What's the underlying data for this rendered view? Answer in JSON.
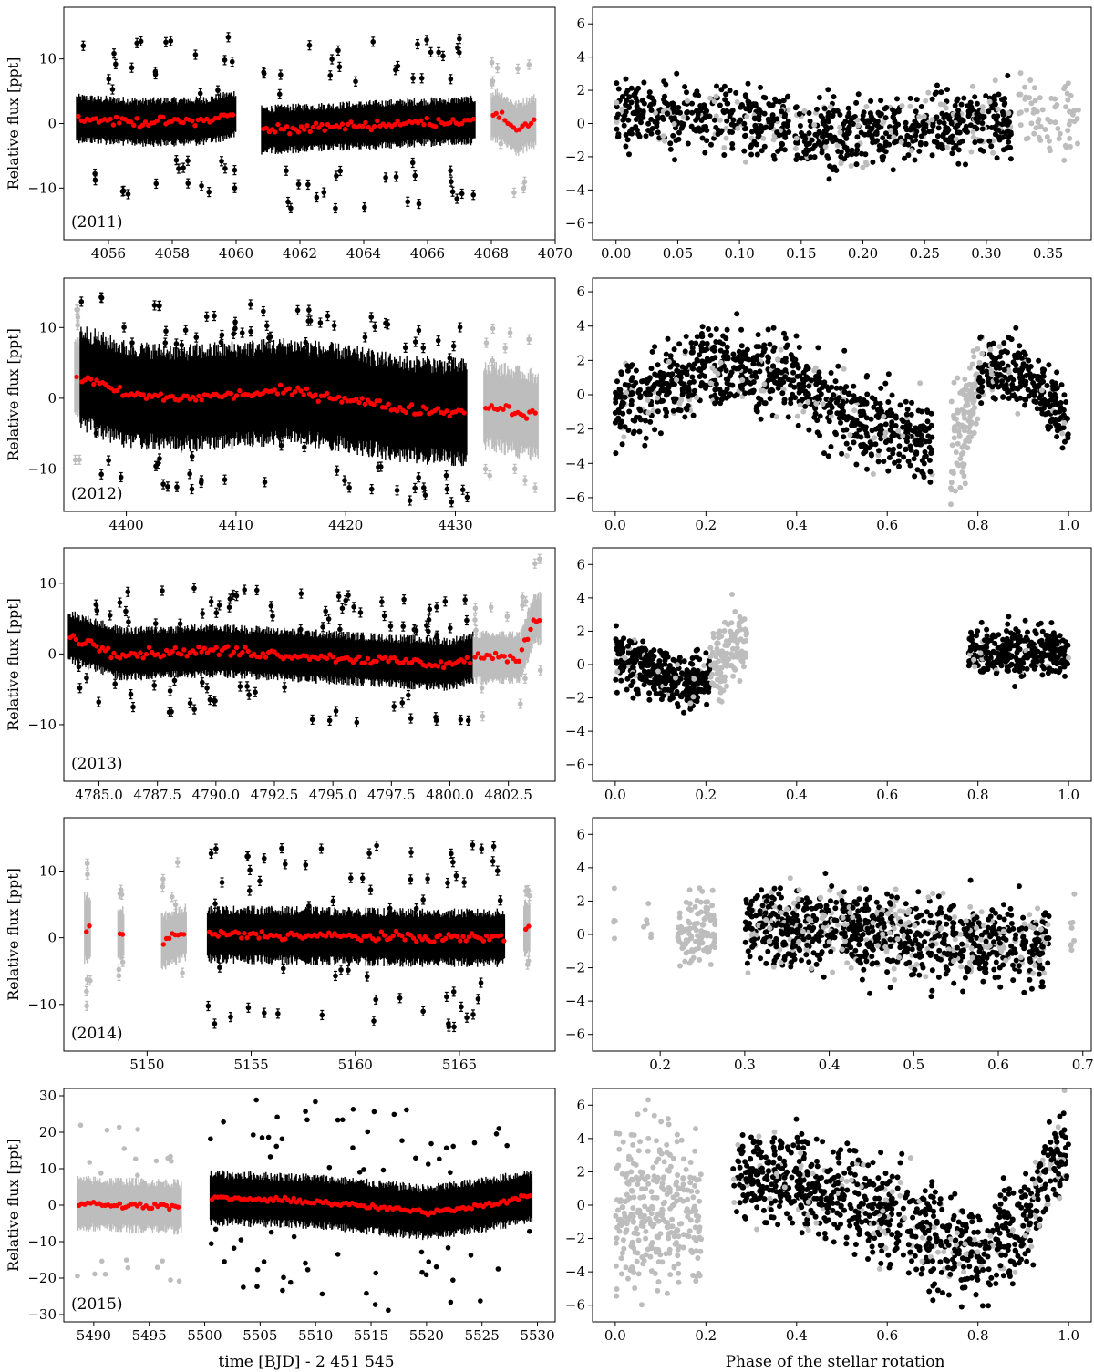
{
  "figure": {
    "xlabel_left": "time [BJD] - 2 451 545",
    "xlabel_right": "Phase of the stellar rotation",
    "ylabel": "Relative flux [ppt]"
  },
  "colors": {
    "primary": "#000000",
    "secondary": "#bdbdbd",
    "binned": "#ff0000",
    "frame": "#000000"
  },
  "chart_data": [
    {
      "type": "scatter",
      "panel": "2011-time",
      "label": "(2011)",
      "xlim": [
        4054.6,
        4070.0
      ],
      "ylim": [
        -18,
        18
      ],
      "xticks": [
        4056,
        4058,
        4060,
        4062,
        4064,
        4066,
        4068,
        4070
      ],
      "xticklabels": [
        "4056",
        "4058",
        "4060",
        "4062",
        "4064",
        "4066",
        "4068",
        "4070"
      ],
      "yticks": [
        -10,
        0,
        10
      ],
      "yticklabels": [
        "−10",
        "0",
        "10"
      ],
      "segments": [
        {
          "x": [
            4055.0,
            4060.0
          ],
          "amp": 3.5,
          "outlier": 13,
          "color": "black",
          "errorbars": true
        },
        {
          "x": [
            4060.8,
            4067.5
          ],
          "amp": 3.5,
          "outlier": 13,
          "color": "black",
          "errorbars": true
        },
        {
          "x": [
            4068.0,
            4069.4
          ],
          "amp": 4.0,
          "outlier": 12,
          "color": "gray",
          "errorbars": true
        }
      ],
      "binned_trend": [
        {
          "x": 4055.0,
          "y": 0.8
        },
        {
          "x": 4057.0,
          "y": 0.2
        },
        {
          "x": 4059.0,
          "y": 0.4
        },
        {
          "x": 4060.0,
          "y": 1.5
        },
        {
          "x": 4060.8,
          "y": -1.0
        },
        {
          "x": 4063.0,
          "y": -0.5
        },
        {
          "x": 4066.0,
          "y": 0.2
        },
        {
          "x": 4067.4,
          "y": 0.5
        },
        {
          "x": 4068.2,
          "y": 1.2
        },
        {
          "x": 4068.8,
          "y": -0.8
        },
        {
          "x": 4069.3,
          "y": 0.3
        }
      ]
    },
    {
      "type": "scatter",
      "panel": "2011-phase",
      "xlim": [
        -0.019,
        0.385
      ],
      "ylim": [
        -7,
        7
      ],
      "xticks": [
        0.0,
        0.05,
        0.1,
        0.15,
        0.2,
        0.25,
        0.3,
        0.35
      ],
      "xticklabels": [
        "0.00",
        "0.05",
        "0.10",
        "0.15",
        "0.20",
        "0.25",
        "0.30",
        "0.35"
      ],
      "yticks": [
        -6,
        -4,
        -2,
        0,
        2,
        4,
        6
      ],
      "yticklabels": [
        "−6",
        "−4",
        "−2",
        "0",
        "2",
        "4",
        "6"
      ],
      "segments": [
        {
          "x": [
            0.0,
            0.14
          ],
          "trend": [
            {
              "x": 0.0,
              "y": 0.6
            },
            {
              "x": 0.14,
              "y": 0.0
            }
          ],
          "noise": 1.0,
          "n": 380,
          "color": "black",
          "gray_mix": 0.15
        },
        {
          "x": [
            0.145,
            0.32
          ],
          "trend": [
            {
              "x": 0.145,
              "y": -0.8
            },
            {
              "x": 0.32,
              "y": 0.3
            }
          ],
          "noise": 1.0,
          "n": 520,
          "color": "black",
          "gray_mix": 0.15
        },
        {
          "x": [
            0.325,
            0.375
          ],
          "trend": [
            {
              "x": 0.325,
              "y": 0.8
            },
            {
              "x": 0.375,
              "y": 0.5
            }
          ],
          "noise": 1.2,
          "n": 70,
          "color": "gray",
          "gray_mix": 0
        }
      ]
    },
    {
      "type": "scatter",
      "panel": "2012-time",
      "label": "(2012)",
      "xlim": [
        4394.3,
        4439.1
      ],
      "ylim": [
        -16,
        17
      ],
      "xticks": [
        4400,
        4410,
        4420,
        4430
      ],
      "xticklabels": [
        "4400",
        "4410",
        "4420",
        "4430"
      ],
      "yticks": [
        -10,
        0,
        10
      ],
      "yticklabels": [
        "−10",
        "0",
        "10"
      ],
      "segments": [
        {
          "x": [
            4395.3,
            4395.8
          ],
          "amp": 6.0,
          "outlier": 12,
          "color": "gray",
          "errorbars": true
        },
        {
          "x": [
            4395.8,
            4431.1
          ],
          "amp": 7.0,
          "outlier": 13,
          "color": "black",
          "errorbars": true
        },
        {
          "x": [
            4432.6,
            4437.6
          ],
          "amp": 6.0,
          "outlier": 11,
          "color": "gray",
          "errorbars": true
        }
      ],
      "binned_trend": [
        {
          "x": 4395.8,
          "y": 3.0
        },
        {
          "x": 4400.0,
          "y": 0.5
        },
        {
          "x": 4405.0,
          "y": 0.0
        },
        {
          "x": 4410.0,
          "y": 0.5
        },
        {
          "x": 4415.0,
          "y": 1.0
        },
        {
          "x": 4420.0,
          "y": 0.0
        },
        {
          "x": 4425.0,
          "y": -1.5
        },
        {
          "x": 4431.0,
          "y": -2.0
        },
        {
          "x": 4433.0,
          "y": -1.0
        },
        {
          "x": 4437.5,
          "y": -2.5
        }
      ]
    },
    {
      "type": "scatter",
      "panel": "2012-phase",
      "xlim": [
        -0.05,
        1.05
      ],
      "ylim": [
        -6.8,
        6.8
      ],
      "xticks": [
        0.0,
        0.2,
        0.4,
        0.6,
        0.8,
        1.0
      ],
      "xticklabels": [
        "0.0",
        "0.2",
        "0.4",
        "0.6",
        "0.8",
        "1.0"
      ],
      "yticks": [
        -6,
        -4,
        -2,
        0,
        2,
        4,
        6
      ],
      "yticklabels": [
        "−6",
        "−4",
        "−2",
        "0",
        "2",
        "4",
        "6"
      ],
      "segments": [
        {
          "x": [
            0.0,
            0.7
          ],
          "trend": [
            {
              "x": 0.0,
              "y": -1.0
            },
            {
              "x": 0.2,
              "y": 1.8
            },
            {
              "x": 0.4,
              "y": 0.8
            },
            {
              "x": 0.55,
              "y": -1.5
            },
            {
              "x": 0.7,
              "y": -3.0
            }
          ],
          "noise": 1.2,
          "n": 900,
          "color": "black",
          "gray_mix": 0.1
        },
        {
          "x": [
            0.74,
            0.8
          ],
          "trend": [
            {
              "x": 0.74,
              "y": -3.5
            },
            {
              "x": 0.8,
              "y": 0.5
            }
          ],
          "noise": 1.8,
          "n": 110,
          "color": "gray",
          "gray_mix": 0
        },
        {
          "x": [
            0.8,
            1.0
          ],
          "trend": [
            {
              "x": 0.8,
              "y": 1.5
            },
            {
              "x": 0.9,
              "y": 1.2
            },
            {
              "x": 1.0,
              "y": -1.5
            }
          ],
          "noise": 1.0,
          "n": 260,
          "color": "black",
          "gray_mix": 0.1
        }
      ]
    },
    {
      "type": "scatter",
      "panel": "2013-time",
      "label": "(2013)",
      "xlim": [
        4783.5,
        4804.5
      ],
      "ylim": [
        -18,
        15
      ],
      "xticks": [
        4785.0,
        4787.5,
        4790.0,
        4792.5,
        4795.0,
        4797.5,
        4800.0,
        4802.5
      ],
      "xticklabels": [
        "4785.0",
        "4787.5",
        "4790.0",
        "4792.5",
        "4795.0",
        "4797.5",
        "4800.0",
        "4802.5"
      ],
      "yticks": [
        -10,
        0,
        10
      ],
      "yticklabels": [
        "−10",
        "0",
        "10"
      ],
      "segments": [
        {
          "x": [
            4783.7,
            4801.0
          ],
          "amp": 3.5,
          "outlier": 9,
          "color": "black",
          "errorbars": true
        },
        {
          "x": [
            4801.0,
            4803.9
          ],
          "amp": 3.5,
          "outlier": 9,
          "color": "gray",
          "errorbars": true
        }
      ],
      "binned_trend": [
        {
          "x": 4783.7,
          "y": 2.5
        },
        {
          "x": 4786.0,
          "y": 0.0
        },
        {
          "x": 4790.0,
          "y": 0.5
        },
        {
          "x": 4795.0,
          "y": -0.5
        },
        {
          "x": 4800.0,
          "y": -1.5
        },
        {
          "x": 4801.0,
          "y": -0.5
        },
        {
          "x": 4803.0,
          "y": -0.5
        },
        {
          "x": 4803.6,
          "y": 5.0
        }
      ]
    },
    {
      "type": "scatter",
      "panel": "2013-phase",
      "xlim": [
        -0.05,
        1.05
      ],
      "ylim": [
        -7,
        7
      ],
      "xticks": [
        0.0,
        0.2,
        0.4,
        0.6,
        0.8,
        1.0
      ],
      "xticklabels": [
        "0.0",
        "0.2",
        "0.4",
        "0.6",
        "0.8",
        "1.0"
      ],
      "yticks": [
        -6,
        -4,
        -2,
        0,
        2,
        4,
        6
      ],
      "yticklabels": [
        "−6",
        "−4",
        "−2",
        "0",
        "2",
        "4",
        "6"
      ],
      "segments": [
        {
          "x": [
            0.0,
            0.21
          ],
          "trend": [
            {
              "x": 0.0,
              "y": 0.5
            },
            {
              "x": 0.15,
              "y": -1.2
            },
            {
              "x": 0.21,
              "y": -1.0
            }
          ],
          "noise": 0.8,
          "n": 380,
          "color": "black",
          "gray_mix": 0.05
        },
        {
          "x": [
            0.21,
            0.29
          ],
          "trend": [
            {
              "x": 0.21,
              "y": -0.5
            },
            {
              "x": 0.29,
              "y": 2.0
            }
          ],
          "noise": 1.2,
          "n": 120,
          "color": "gray",
          "gray_mix": 0
        },
        {
          "x": [
            0.78,
            1.0
          ],
          "trend": [
            {
              "x": 0.78,
              "y": 0.8
            },
            {
              "x": 1.0,
              "y": 0.8
            }
          ],
          "noise": 0.8,
          "n": 330,
          "color": "black",
          "gray_mix": 0.05
        }
      ]
    },
    {
      "type": "scatter",
      "panel": "2014-time",
      "label": "(2014)",
      "xlim": [
        5146.0,
        5169.6
      ],
      "ylim": [
        -17,
        18
      ],
      "xticks": [
        5150,
        5155,
        5160,
        5165
      ],
      "xticklabels": [
        "5150",
        "5155",
        "5160",
        "5165"
      ],
      "yticks": [
        -10,
        0,
        10
      ],
      "yticklabels": [
        "−10",
        "0",
        "10"
      ],
      "segments": [
        {
          "x": [
            5147.0,
            5147.3
          ],
          "amp": 5.0,
          "outlier": 12,
          "color": "gray",
          "errorbars": true
        },
        {
          "x": [
            5148.6,
            5148.9
          ],
          "amp": 4.0,
          "outlier": 7,
          "color": "gray",
          "errorbars": true
        },
        {
          "x": [
            5150.7,
            5151.9
          ],
          "amp": 4.0,
          "outlier": 11,
          "color": "gray",
          "errorbars": true
        },
        {
          "x": [
            5152.9,
            5167.2
          ],
          "amp": 4.0,
          "outlier": 14,
          "color": "black",
          "errorbars": true
        },
        {
          "x": [
            5168.1,
            5168.4
          ],
          "amp": 4.0,
          "outlier": 6,
          "color": "gray",
          "errorbars": true
        }
      ],
      "binned_trend": [
        {
          "x": 5147.1,
          "y": 1.5
        },
        {
          "x": 5148.7,
          "y": 0.5
        },
        {
          "x": 5150.8,
          "y": -0.5
        },
        {
          "x": 5151.8,
          "y": 0.8
        },
        {
          "x": 5153.0,
          "y": 0.5
        },
        {
          "x": 5158.0,
          "y": 0.3
        },
        {
          "x": 5163.0,
          "y": 0.0
        },
        {
          "x": 5167.0,
          "y": 0.0
        },
        {
          "x": 5168.2,
          "y": 1.5
        }
      ]
    },
    {
      "type": "scatter",
      "panel": "2014-phase",
      "xlim": [
        0.12,
        0.71
      ],
      "ylim": [
        -7,
        7
      ],
      "xticks": [
        0.2,
        0.3,
        0.4,
        0.5,
        0.6,
        0.7
      ],
      "xticklabels": [
        "0.2",
        "0.3",
        "0.4",
        "0.5",
        "0.6",
        "0.7"
      ],
      "yticks": [
        -6,
        -4,
        -2,
        0,
        2,
        4,
        6
      ],
      "yticklabels": [
        "−6",
        "−4",
        "−2",
        "0",
        "2",
        "4",
        "6"
      ],
      "segments": [
        {
          "x": [
            0.145,
            0.147
          ],
          "trend": [
            {
              "x": 0.145,
              "y": 0.8
            },
            {
              "x": 0.147,
              "y": 0.8
            }
          ],
          "noise": 1.2,
          "n": 6,
          "color": "gray",
          "gray_mix": 0
        },
        {
          "x": [
            0.18,
            0.19
          ],
          "trend": [
            {
              "x": 0.18,
              "y": 0.5
            },
            {
              "x": 0.19,
              "y": 0.0
            }
          ],
          "noise": 1.0,
          "n": 6,
          "color": "gray",
          "gray_mix": 0
        },
        {
          "x": [
            0.22,
            0.265
          ],
          "trend": [
            {
              "x": 0.22,
              "y": 0.0
            },
            {
              "x": 0.265,
              "y": 0.8
            }
          ],
          "noise": 1.1,
          "n": 110,
          "color": "gray",
          "gray_mix": 0
        },
        {
          "x": [
            0.3,
            0.66
          ],
          "trend": [
            {
              "x": 0.3,
              "y": 0.5
            },
            {
              "x": 0.45,
              "y": 0.2
            },
            {
              "x": 0.66,
              "y": -0.8
            }
          ],
          "noise": 1.2,
          "n": 1000,
          "color": "black",
          "gray_mix": 0.25
        },
        {
          "x": [
            0.685,
            0.69
          ],
          "trend": [
            {
              "x": 0.685,
              "y": 0.5
            },
            {
              "x": 0.69,
              "y": 0.5
            }
          ],
          "noise": 1.5,
          "n": 8,
          "color": "gray",
          "gray_mix": 0
        }
      ]
    },
    {
      "type": "scatter",
      "panel": "2015-time",
      "label": "(2015)",
      "xlim": [
        5487.3,
        5531.6
      ],
      "ylim": [
        -32,
        32
      ],
      "xticks": [
        5490,
        5495,
        5500,
        5505,
        5510,
        5515,
        5520,
        5525,
        5530
      ],
      "xticklabels": [
        "5490",
        "5495",
        "5500",
        "5505",
        "5510",
        "5515",
        "5520",
        "5525",
        "5530"
      ],
      "yticks": [
        -30,
        -20,
        -10,
        0,
        10,
        20,
        30
      ],
      "yticklabels": [
        "−30",
        "−20",
        "−10",
        "0",
        "10",
        "20",
        "30"
      ],
      "segments": [
        {
          "x": [
            5488.5,
            5497.9
          ],
          "amp": 7.0,
          "outlier": 22,
          "color": "gray",
          "errorbars": false
        },
        {
          "x": [
            5500.5,
            5529.5
          ],
          "amp": 7.0,
          "outlier": 28,
          "color": "black",
          "errorbars": false
        }
      ],
      "binned_trend": [
        {
          "x": 5488.5,
          "y": 0.5
        },
        {
          "x": 5493.0,
          "y": 0.0
        },
        {
          "x": 5497.8,
          "y": -0.5
        },
        {
          "x": 5500.5,
          "y": 2.0
        },
        {
          "x": 5510.0,
          "y": 1.0
        },
        {
          "x": 5520.0,
          "y": -2.0
        },
        {
          "x": 5525.0,
          "y": 0.0
        },
        {
          "x": 5529.5,
          "y": 2.5
        }
      ]
    },
    {
      "type": "scatter",
      "panel": "2015-phase",
      "xlim": [
        -0.05,
        1.05
      ],
      "ylim": [
        -7,
        7
      ],
      "xticks": [
        0.0,
        0.2,
        0.4,
        0.6,
        0.8,
        1.0
      ],
      "xticklabels": [
        "0.0",
        "0.2",
        "0.4",
        "0.6",
        "0.8",
        "1.0"
      ],
      "yticks": [
        -6,
        -4,
        -2,
        0,
        2,
        4,
        6
      ],
      "yticklabels": [
        "−6",
        "−4",
        "−2",
        "0",
        "2",
        "4",
        "6"
      ],
      "segments": [
        {
          "x": [
            0.0,
            0.19
          ],
          "trend": [
            {
              "x": 0.0,
              "y": 0.0
            },
            {
              "x": 0.19,
              "y": -0.5
            }
          ],
          "noise": 2.4,
          "n": 320,
          "color": "gray",
          "gray_mix": 0
        },
        {
          "x": [
            0.26,
            1.0
          ],
          "trend": [
            {
              "x": 0.26,
              "y": 2.0
            },
            {
              "x": 0.4,
              "y": 1.5
            },
            {
              "x": 0.6,
              "y": -0.5
            },
            {
              "x": 0.8,
              "y": -3.0
            },
            {
              "x": 0.9,
              "y": -1.0
            },
            {
              "x": 1.0,
              "y": 4.0
            }
          ],
          "noise": 1.5,
          "n": 1000,
          "color": "black",
          "gray_mix": 0.15
        }
      ]
    }
  ]
}
